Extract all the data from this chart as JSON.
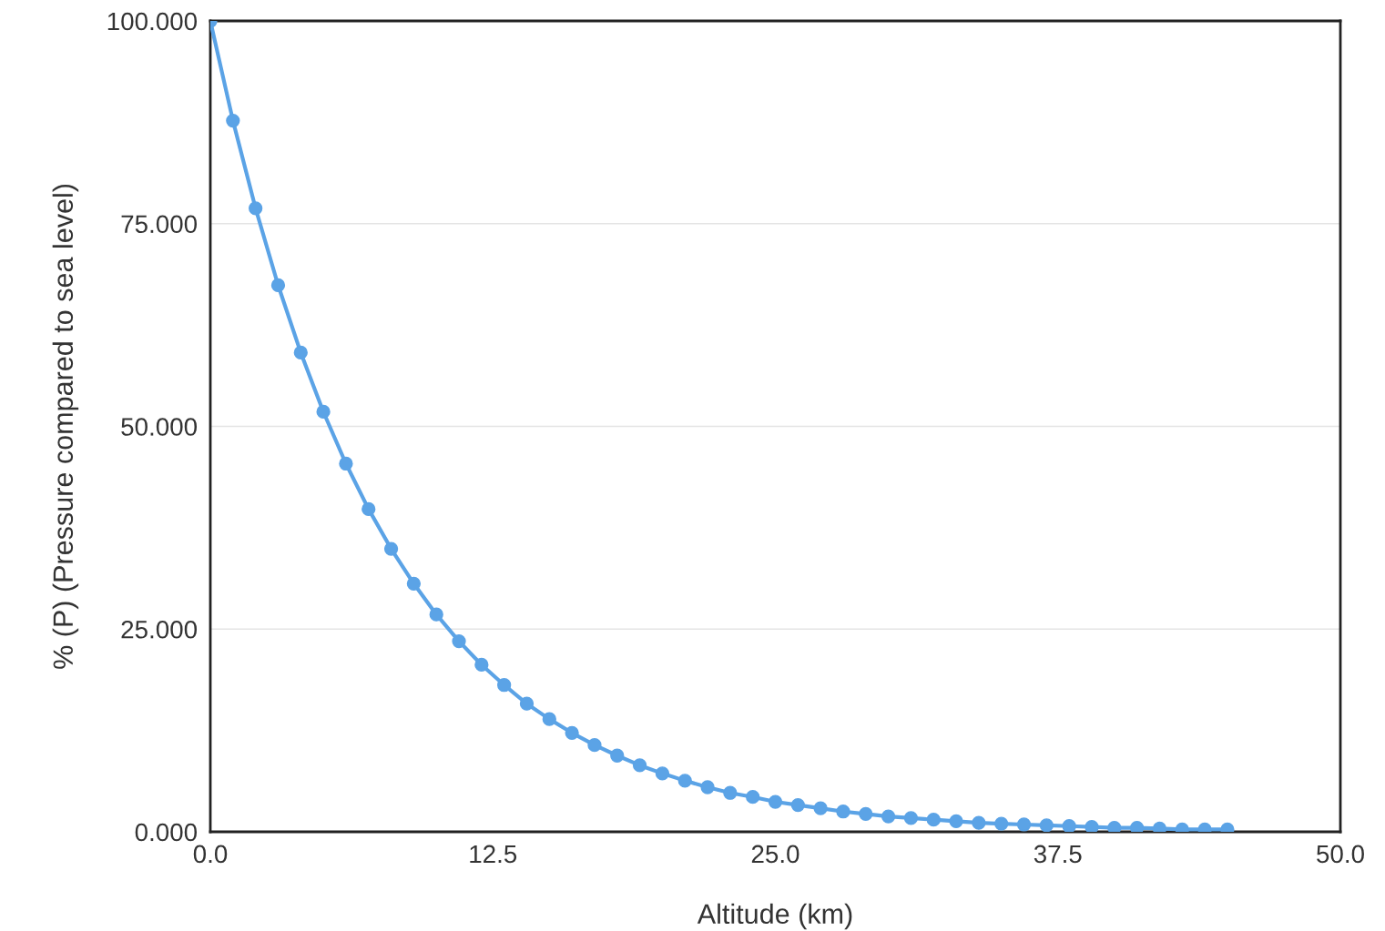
{
  "chart_data": {
    "type": "line",
    "xlabel": "Altitude (km)",
    "ylabel": "% (P) (Pressure compared to sea level)",
    "xlim": [
      0,
      50
    ],
    "ylim": [
      0,
      100
    ],
    "xticks": [
      {
        "value": 0,
        "label": "0.0"
      },
      {
        "value": 12.5,
        "label": "12.5"
      },
      {
        "value": 25,
        "label": "25.0"
      },
      {
        "value": 37.5,
        "label": "37.5"
      },
      {
        "value": 50,
        "label": "50.0"
      }
    ],
    "yticks": [
      {
        "value": 0,
        "label": "0.000"
      },
      {
        "value": 25,
        "label": "25.000"
      },
      {
        "value": 50,
        "label": "50.000"
      },
      {
        "value": 75,
        "label": "75.000"
      },
      {
        "value": 100,
        "label": "100.000"
      }
    ],
    "grid": "y",
    "marker": "circle",
    "line_style": "solid",
    "series": [
      {
        "color": "#5ba3e6",
        "x": [
          0,
          1,
          2,
          3,
          4,
          5,
          6,
          7,
          8,
          9,
          10,
          11,
          12,
          13,
          14,
          15,
          16,
          17,
          18,
          19,
          20,
          21,
          22,
          23,
          24,
          25,
          26,
          27,
          28,
          29,
          30,
          31,
          32,
          33,
          34,
          35,
          36,
          37,
          38,
          39,
          40,
          41,
          42,
          43,
          44,
          45
        ],
        "values": [
          100,
          87.7,
          76.9,
          67.4,
          59.1,
          51.8,
          45.4,
          39.8,
          34.9,
          30.6,
          26.8,
          23.5,
          20.6,
          18.1,
          15.8,
          13.9,
          12.2,
          10.7,
          9.4,
          8.2,
          7.2,
          6.3,
          5.5,
          4.8,
          4.3,
          3.7,
          3.3,
          2.9,
          2.5,
          2.2,
          1.9,
          1.7,
          1.5,
          1.3,
          1.1,
          1.0,
          0.9,
          0.8,
          0.7,
          0.6,
          0.5,
          0.5,
          0.4,
          0.3,
          0.3,
          0.3
        ]
      }
    ]
  }
}
